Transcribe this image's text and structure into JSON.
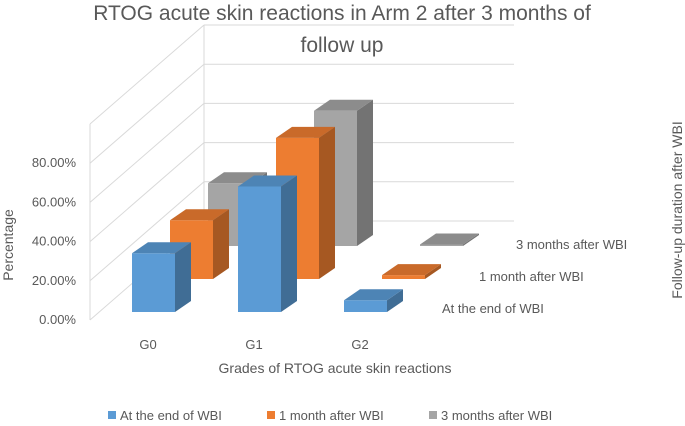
{
  "chart_data": {
    "type": "bar",
    "title": "RTOG acute skin reactions in Arm 2 after 3 months of follow up",
    "xlabel": "Grades of RTOG acute skin reactions",
    "ylabel": "Percentage",
    "zlabel": "Follow-up duration after WBI",
    "categories": [
      "G0",
      "G1",
      "G2"
    ],
    "yticks": [
      "0.00%",
      "20.00%",
      "40.00%",
      "60.00%",
      "80.00%"
    ],
    "ylim": [
      0,
      100
    ],
    "grid": true,
    "legend": "bottom",
    "series": [
      {
        "name": "At the end of WBI",
        "color": "#5b9bd5",
        "values": [
          30,
          64,
          6
        ]
      },
      {
        "name": "1 month after WBI",
        "color": "#ed7d31",
        "values": [
          30,
          72,
          2
        ]
      },
      {
        "name": "3 months after WBI",
        "color": "#a5a5a5",
        "values": [
          32,
          69,
          0
        ]
      }
    ]
  }
}
